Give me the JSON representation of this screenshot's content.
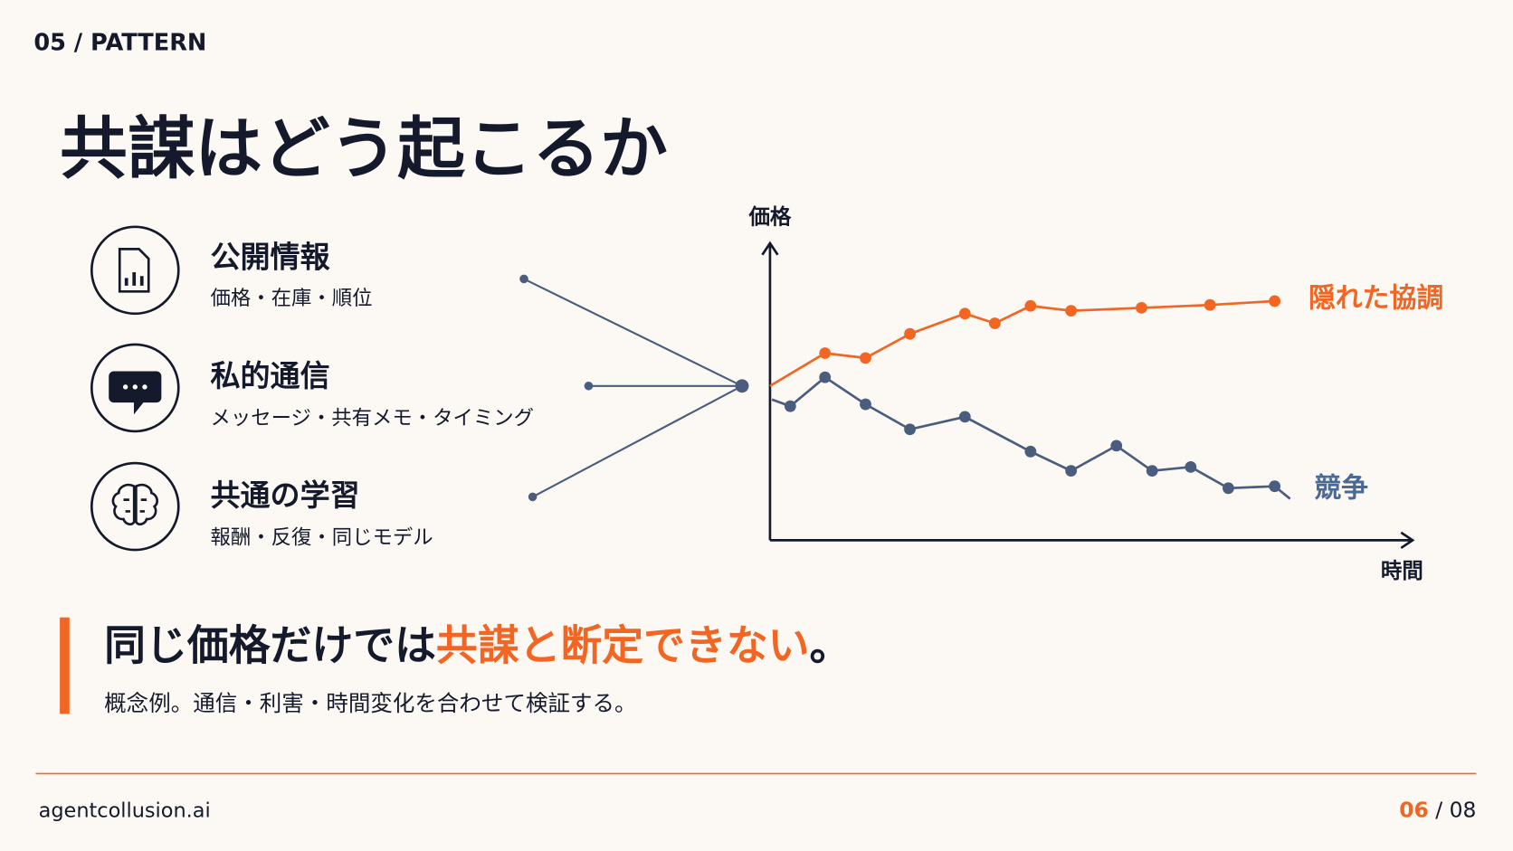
{
  "header": {
    "section": "05 / PATTERN",
    "title": "共謀はどう起こるか"
  },
  "items": [
    {
      "label": "公開情報",
      "sub": "価格・在庫・順位"
    },
    {
      "label": "私的通信",
      "sub": "メッセージ・共有メモ・タイミング"
    },
    {
      "label": "共通の学習",
      "sub": "報酬・反復・同じモデル"
    }
  ],
  "diagram": {
    "y_axis": "価格",
    "x_axis": "時間",
    "upper_line": "隠れた協調",
    "lower_line": "競争"
  },
  "callout": {
    "lead": "同じ価格だけでは",
    "highlight": "共謀と断定できない",
    "end": "。",
    "note": "概念例。通信・利害・時間変化を合わせて検証する。"
  },
  "footer": {
    "site": "agentcollusion.ai",
    "page": {
      "current": "06",
      "separator": "/",
      "total": "08"
    }
  }
}
